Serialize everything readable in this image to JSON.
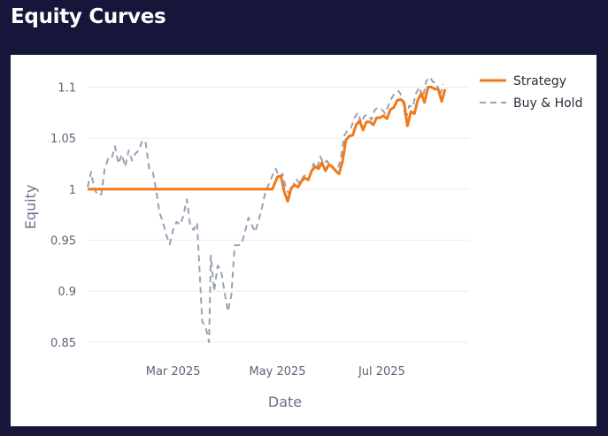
{
  "header": {
    "title": "Equity Curves"
  },
  "colors": {
    "background": "#16163a",
    "strategy": "#f07a1a",
    "buy_and_hold": "#9aa1b3"
  },
  "chart_data": {
    "type": "line",
    "title": "",
    "xlabel": "Date",
    "ylabel": "Equity",
    "xlim": [
      "2025-01-10",
      "2025-08-21"
    ],
    "ylim": [
      0.843,
      1.123
    ],
    "yticks": [
      0.85,
      0.9,
      0.95,
      1,
      1.05,
      1.1
    ],
    "ytick_labels": [
      "0.85",
      "0.9",
      "0.95",
      "1",
      "1.05",
      "1.1"
    ],
    "xticks": [
      "2025-03-01",
      "2025-05-01",
      "2025-07-01"
    ],
    "xtick_labels": [
      "Mar 2025",
      "May 2025",
      "Jul 2025"
    ],
    "grid": true,
    "legend_position": "top-right",
    "series": [
      {
        "name": "Strategy",
        "color": "#f07a1a",
        "style": "solid",
        "points": [
          [
            "2025-01-10",
            1.0
          ],
          [
            "2025-04-28",
            1.0
          ],
          [
            "2025-05-01",
            1.012
          ],
          [
            "2025-05-03",
            1.013
          ],
          [
            "2025-05-05",
            0.997
          ],
          [
            "2025-05-07",
            0.988
          ],
          [
            "2025-05-09",
            1.001
          ],
          [
            "2025-05-11",
            1.004
          ],
          [
            "2025-05-13",
            1.002
          ],
          [
            "2025-05-15",
            1.008
          ],
          [
            "2025-05-17",
            1.011
          ],
          [
            "2025-05-19",
            1.009
          ],
          [
            "2025-05-21",
            1.018
          ],
          [
            "2025-05-23",
            1.022
          ],
          [
            "2025-05-25",
            1.02
          ],
          [
            "2025-05-27",
            1.026
          ],
          [
            "2025-05-29",
            1.018
          ],
          [
            "2025-05-31",
            1.024
          ],
          [
            "2025-06-02",
            1.022
          ],
          [
            "2025-06-04",
            1.018
          ],
          [
            "2025-06-06",
            1.015
          ],
          [
            "2025-06-08",
            1.027
          ],
          [
            "2025-06-10",
            1.048
          ],
          [
            "2025-06-12",
            1.052
          ],
          [
            "2025-06-14",
            1.053
          ],
          [
            "2025-06-16",
            1.063
          ],
          [
            "2025-06-18",
            1.067
          ],
          [
            "2025-06-20",
            1.058
          ],
          [
            "2025-06-22",
            1.066
          ],
          [
            "2025-06-24",
            1.066
          ],
          [
            "2025-06-26",
            1.063
          ],
          [
            "2025-06-28",
            1.07
          ],
          [
            "2025-06-30",
            1.07
          ],
          [
            "2025-07-02",
            1.072
          ],
          [
            "2025-07-04",
            1.069
          ],
          [
            "2025-07-06",
            1.078
          ],
          [
            "2025-07-08",
            1.08
          ],
          [
            "2025-07-10",
            1.087
          ],
          [
            "2025-07-12",
            1.088
          ],
          [
            "2025-07-14",
            1.085
          ],
          [
            "2025-07-16",
            1.062
          ],
          [
            "2025-07-18",
            1.076
          ],
          [
            "2025-07-20",
            1.074
          ],
          [
            "2025-07-22",
            1.087
          ],
          [
            "2025-07-24",
            1.094
          ],
          [
            "2025-07-26",
            1.085
          ],
          [
            "2025-07-28",
            1.1
          ],
          [
            "2025-07-30",
            1.1
          ],
          [
            "2025-08-01",
            1.098
          ],
          [
            "2025-08-03",
            1.098
          ],
          [
            "2025-08-05",
            1.086
          ],
          [
            "2025-08-07",
            1.098
          ]
        ]
      },
      {
        "name": "Buy & Hold",
        "color": "#9aa1b3",
        "style": "dashed",
        "points": [
          [
            "2025-01-10",
            1.002
          ],
          [
            "2025-01-12",
            1.017
          ],
          [
            "2025-01-14",
            1.0
          ],
          [
            "2025-01-16",
            0.994
          ],
          [
            "2025-01-18",
            0.995
          ],
          [
            "2025-01-20",
            1.02
          ],
          [
            "2025-01-22",
            1.03
          ],
          [
            "2025-01-24",
            1.03
          ],
          [
            "2025-01-26",
            1.042
          ],
          [
            "2025-01-28",
            1.025
          ],
          [
            "2025-01-30",
            1.034
          ],
          [
            "2025-02-01",
            1.022
          ],
          [
            "2025-02-03",
            1.038
          ],
          [
            "2025-02-05",
            1.028
          ],
          [
            "2025-02-07",
            1.035
          ],
          [
            "2025-02-09",
            1.038
          ],
          [
            "2025-02-11",
            1.048
          ],
          [
            "2025-02-13",
            1.045
          ],
          [
            "2025-02-15",
            1.02
          ],
          [
            "2025-02-17",
            1.018
          ],
          [
            "2025-02-19",
            1.0
          ],
          [
            "2025-02-21",
            0.977
          ],
          [
            "2025-02-23",
            0.968
          ],
          [
            "2025-02-25",
            0.955
          ],
          [
            "2025-02-27",
            0.946
          ],
          [
            "2025-03-01",
            0.96
          ],
          [
            "2025-03-03",
            0.968
          ],
          [
            "2025-03-05",
            0.965
          ],
          [
            "2025-03-07",
            0.974
          ],
          [
            "2025-03-09",
            0.99
          ],
          [
            "2025-03-11",
            0.964
          ],
          [
            "2025-03-13",
            0.96
          ],
          [
            "2025-03-15",
            0.967
          ],
          [
            "2025-03-18",
            0.87
          ],
          [
            "2025-03-20",
            0.865
          ],
          [
            "2025-03-22",
            0.85
          ],
          [
            "2025-03-23",
            0.935
          ],
          [
            "2025-03-25",
            0.9
          ],
          [
            "2025-03-27",
            0.925
          ],
          [
            "2025-03-29",
            0.92
          ],
          [
            "2025-03-31",
            0.9
          ],
          [
            "2025-04-02",
            0.88
          ],
          [
            "2025-04-04",
            0.895
          ],
          [
            "2025-04-06",
            0.945
          ],
          [
            "2025-04-08",
            0.945
          ],
          [
            "2025-04-10",
            0.946
          ],
          [
            "2025-04-12",
            0.958
          ],
          [
            "2025-04-14",
            0.972
          ],
          [
            "2025-04-16",
            0.965
          ],
          [
            "2025-04-18",
            0.958
          ],
          [
            "2025-04-20",
            0.97
          ],
          [
            "2025-04-22",
            0.982
          ],
          [
            "2025-04-24",
            0.998
          ],
          [
            "2025-04-26",
            1.005
          ],
          [
            "2025-04-28",
            1.013
          ],
          [
            "2025-04-30",
            1.02
          ],
          [
            "2025-05-02",
            1.012
          ],
          [
            "2025-05-04",
            1.015
          ],
          [
            "2025-05-06",
            1.0
          ],
          [
            "2025-05-08",
            0.995
          ],
          [
            "2025-05-10",
            1.003
          ],
          [
            "2025-05-12",
            1.01
          ],
          [
            "2025-05-14",
            1.005
          ],
          [
            "2025-05-16",
            1.012
          ],
          [
            "2025-05-18",
            1.015
          ],
          [
            "2025-05-20",
            1.013
          ],
          [
            "2025-05-22",
            1.025
          ],
          [
            "2025-05-24",
            1.02
          ],
          [
            "2025-05-26",
            1.032
          ],
          [
            "2025-05-28",
            1.025
          ],
          [
            "2025-05-30",
            1.028
          ],
          [
            "2025-06-01",
            1.022
          ],
          [
            "2025-06-03",
            1.02
          ],
          [
            "2025-06-05",
            1.018
          ],
          [
            "2025-06-07",
            1.03
          ],
          [
            "2025-06-09",
            1.052
          ],
          [
            "2025-06-11",
            1.058
          ],
          [
            "2025-06-13",
            1.06
          ],
          [
            "2025-06-15",
            1.07
          ],
          [
            "2025-06-17",
            1.075
          ],
          [
            "2025-06-19",
            1.065
          ],
          [
            "2025-06-21",
            1.072
          ],
          [
            "2025-06-23",
            1.073
          ],
          [
            "2025-06-25",
            1.068
          ],
          [
            "2025-06-27",
            1.078
          ],
          [
            "2025-06-29",
            1.08
          ],
          [
            "2025-07-01",
            1.078
          ],
          [
            "2025-07-03",
            1.074
          ],
          [
            "2025-07-05",
            1.083
          ],
          [
            "2025-07-07",
            1.09
          ],
          [
            "2025-07-09",
            1.095
          ],
          [
            "2025-07-11",
            1.096
          ],
          [
            "2025-07-13",
            1.09
          ],
          [
            "2025-07-15",
            1.068
          ],
          [
            "2025-07-17",
            1.082
          ],
          [
            "2025-07-19",
            1.08
          ],
          [
            "2025-07-21",
            1.094
          ],
          [
            "2025-07-23",
            1.1
          ],
          [
            "2025-07-25",
            1.09
          ],
          [
            "2025-07-27",
            1.106
          ],
          [
            "2025-07-29",
            1.11
          ],
          [
            "2025-07-31",
            1.105
          ],
          [
            "2025-08-02",
            1.104
          ],
          [
            "2025-08-04",
            1.092
          ],
          [
            "2025-08-06",
            1.103
          ]
        ]
      }
    ]
  }
}
